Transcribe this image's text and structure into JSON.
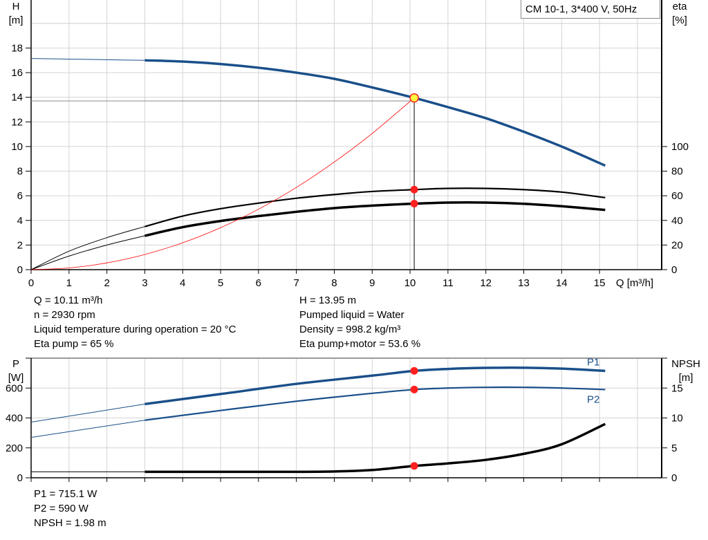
{
  "chart_data": [
    {
      "type": "line",
      "title": "CM 10-1, 3*400 V, 50Hz",
      "xlabel": "Q [m³/h]",
      "ylabel": "H\n[m]",
      "ylabel_right": "eta\n[%]",
      "xlim": [
        0,
        16.64
      ],
      "ylim": [
        0,
        21.9
      ],
      "ylim_right": [
        0,
        219
      ],
      "x_ticks": [
        0,
        1,
        2,
        3,
        4,
        5,
        6,
        7,
        8,
        9,
        10,
        11,
        12,
        13,
        14,
        15
      ],
      "y_ticks": [
        0,
        2,
        4,
        6,
        8,
        10,
        12,
        14,
        16,
        18
      ],
      "y_ticks_right": [
        0,
        20,
        40,
        60,
        80,
        100
      ],
      "grid": true,
      "series": [
        {
          "id": "H",
          "axis": "left",
          "color": "#1a4f8a",
          "x": [
            0,
            1,
            2,
            3,
            4,
            5,
            6,
            7,
            8,
            9,
            10.11,
            11,
            12,
            13,
            14,
            15.15
          ],
          "y": [
            17.15,
            17.1,
            17.05,
            17.0,
            16.9,
            16.7,
            16.4,
            16.0,
            15.5,
            14.8,
            13.95,
            13.2,
            12.3,
            11.2,
            10.0,
            8.45
          ],
          "thin_until": 3
        },
        {
          "id": "eta_pump",
          "axis": "right",
          "color": "#000000",
          "x": [
            0,
            1,
            2,
            3,
            4,
            5,
            6,
            7,
            8,
            9,
            10.11,
            11,
            12,
            13,
            14,
            15.15
          ],
          "y": [
            0,
            15,
            26,
            35,
            43.5,
            49.5,
            54,
            58,
            61,
            63.5,
            65,
            66,
            66,
            65,
            63,
            58.5
          ],
          "thin_until": 3
        },
        {
          "id": "eta_pump_motor",
          "axis": "right",
          "color": "#000000",
          "x": [
            0,
            1,
            2,
            3,
            4,
            5,
            6,
            7,
            8,
            9,
            10.11,
            11,
            12,
            13,
            14,
            15.15
          ],
          "y": [
            0,
            11,
            20,
            27.5,
            34.5,
            39.5,
            43.5,
            47,
            50,
            52,
            53.6,
            54.5,
            54.5,
            53.5,
            51.5,
            48.5
          ],
          "thin_until": 3,
          "bold": true
        },
        {
          "id": "system",
          "axis": "left",
          "color": "#ff0000",
          "x": [
            0,
            1,
            2,
            3,
            4,
            5,
            6,
            7,
            8,
            9,
            10.11
          ],
          "y": [
            0,
            0.14,
            0.55,
            1.23,
            2.18,
            3.41,
            4.91,
            6.68,
            8.74,
            11.06,
            13.95
          ],
          "thin_until": 99
        }
      ],
      "operating_point": {
        "Q": 10.11,
        "H": 13.95,
        "eta_pump": 65,
        "eta_pump_motor": 53.6
      }
    },
    {
      "type": "line",
      "ylabel": "P\n[W]",
      "ylabel_right": "NPSH\n[m]",
      "xlim": [
        0,
        16.64
      ],
      "ylim": [
        0,
        800
      ],
      "ylim_right": [
        0,
        20
      ],
      "x_ticks": [
        0,
        1,
        2,
        3,
        4,
        5,
        6,
        7,
        8,
        9,
        10,
        11,
        12,
        13,
        14,
        15
      ],
      "y_ticks": [
        0,
        200,
        400,
        600
      ],
      "y_ticks_right": [
        0,
        5,
        10,
        15
      ],
      "grid": true,
      "series": [
        {
          "id": "P1",
          "name": "P1",
          "axis": "left",
          "color": "#1a4f8a",
          "x": [
            0,
            3,
            5,
            7,
            9,
            10.11,
            11,
            12,
            13,
            14,
            15.15
          ],
          "y": [
            372,
            493,
            560,
            628,
            683,
            715,
            728,
            735,
            736,
            730,
            715
          ],
          "thin_until": 3,
          "bold": true
        },
        {
          "id": "P2",
          "name": "P2",
          "axis": "left",
          "color": "#1a4f8a",
          "x": [
            0,
            3,
            5,
            7,
            9,
            10.11,
            11,
            12,
            13,
            14,
            15.15
          ],
          "y": [
            270,
            385,
            450,
            512,
            565,
            590,
            600,
            605,
            605,
            600,
            590
          ],
          "thin_until": 3
        },
        {
          "id": "NPSH",
          "axis": "right",
          "color": "#000000",
          "x": [
            0,
            3,
            5,
            7,
            8,
            9,
            10.11,
            11,
            12,
            13,
            14,
            15.15
          ],
          "y": [
            1.0,
            1.0,
            1.0,
            1.0,
            1.05,
            1.3,
            1.98,
            2.4,
            3.0,
            4.0,
            5.6,
            9.0
          ],
          "thin_until": 3,
          "bold": true
        }
      ],
      "operating_point": {
        "Q": 10.11,
        "P1": 715.1,
        "P2": 590,
        "NPSH": 1.98
      }
    }
  ],
  "info_top_left": [
    "Q = 10.11 m³/h",
    "n = 2930 rpm",
    "Liquid temperature during operation = 20 °C",
    "Eta pump = 65 %"
  ],
  "info_top_right": [
    "H = 13.95 m",
    "Pumped liquid = Water",
    "Density = 998.2 kg/m³",
    "Eta pump+motor = 53.6 %"
  ],
  "info_bottom": [
    "P1 = 715.1 W",
    "P2 = 590 W",
    "NPSH = 1.98 m"
  ],
  "colors": {
    "blue": "#1a4f8a",
    "red": "#ff0000",
    "point": "#ff2020",
    "yellow": "#ffff40",
    "grid": "#d4d4d4"
  }
}
